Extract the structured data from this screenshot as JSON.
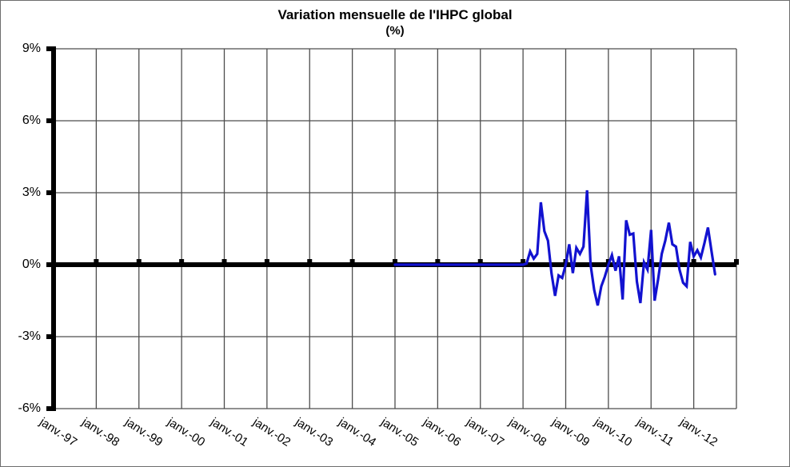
{
  "title": "Variation mensuelle de l'IHPC global",
  "subtitle": "(%)",
  "chart_data": {
    "type": "line",
    "title": "Variation mensuelle de l'IHPC global",
    "subtitle": "(%)",
    "xlabel": "",
    "ylabel": "",
    "ylim": [
      -6,
      9
    ],
    "ytick_step": 3,
    "grid": true,
    "legend_position": "none",
    "line_color": "#1212d0",
    "axis_color": "#000000",
    "gridline_color": "#4d4d4d",
    "ytick_labels": [
      "9%",
      "6%",
      "3%",
      "0%",
      "-3%",
      "-6%"
    ],
    "ytick_values": [
      9,
      6,
      3,
      0,
      -3,
      -6
    ],
    "x_tick_labels": [
      "janv.-97",
      "janv.-98",
      "janv.-99",
      "janv.-00",
      "janv.-01",
      "janv.-02",
      "janv.-03",
      "janv.-04",
      "janv.-05",
      "janv.-06",
      "janv.-07",
      "janv.-08",
      "janv.-09",
      "janv.-10",
      "janv.-11",
      "janv.-12"
    ],
    "x_total_intervals": 16,
    "months_per_interval": 12,
    "series": [
      {
        "name": "Variation mensuelle de l'IHPC global (%)",
        "start_month_label": "janv.-05",
        "start_month_index": 96,
        "values": [
          0,
          0,
          0,
          0,
          0,
          0,
          0,
          0,
          0,
          0,
          0,
          0,
          0,
          0,
          0,
          0,
          0,
          0,
          0,
          0,
          0,
          0,
          0,
          0,
          0,
          0,
          0,
          0,
          0,
          0,
          0,
          0,
          0,
          0,
          0,
          0,
          0,
          0.05,
          0.55,
          0.25,
          0.45,
          2.6,
          1.4,
          1.0,
          -0.35,
          -1.3,
          -0.45,
          -0.55,
          0,
          0.85,
          -0.35,
          0.7,
          0.45,
          0.75,
          3.1,
          0,
          -1.05,
          -1.7,
          -0.9,
          -0.5,
          0,
          0.4,
          -0.25,
          0.35,
          -1.45,
          1.85,
          1.25,
          1.3,
          -0.7,
          -1.6,
          0.1,
          -0.2,
          1.45,
          -1.5,
          -0.6,
          0.45,
          1.0,
          1.75,
          0.85,
          0.75,
          -0.2,
          -0.75,
          -0.9,
          0.95,
          0.35,
          0.6,
          0.3,
          0.9,
          1.55,
          0.55,
          -0.4
        ]
      }
    ]
  }
}
